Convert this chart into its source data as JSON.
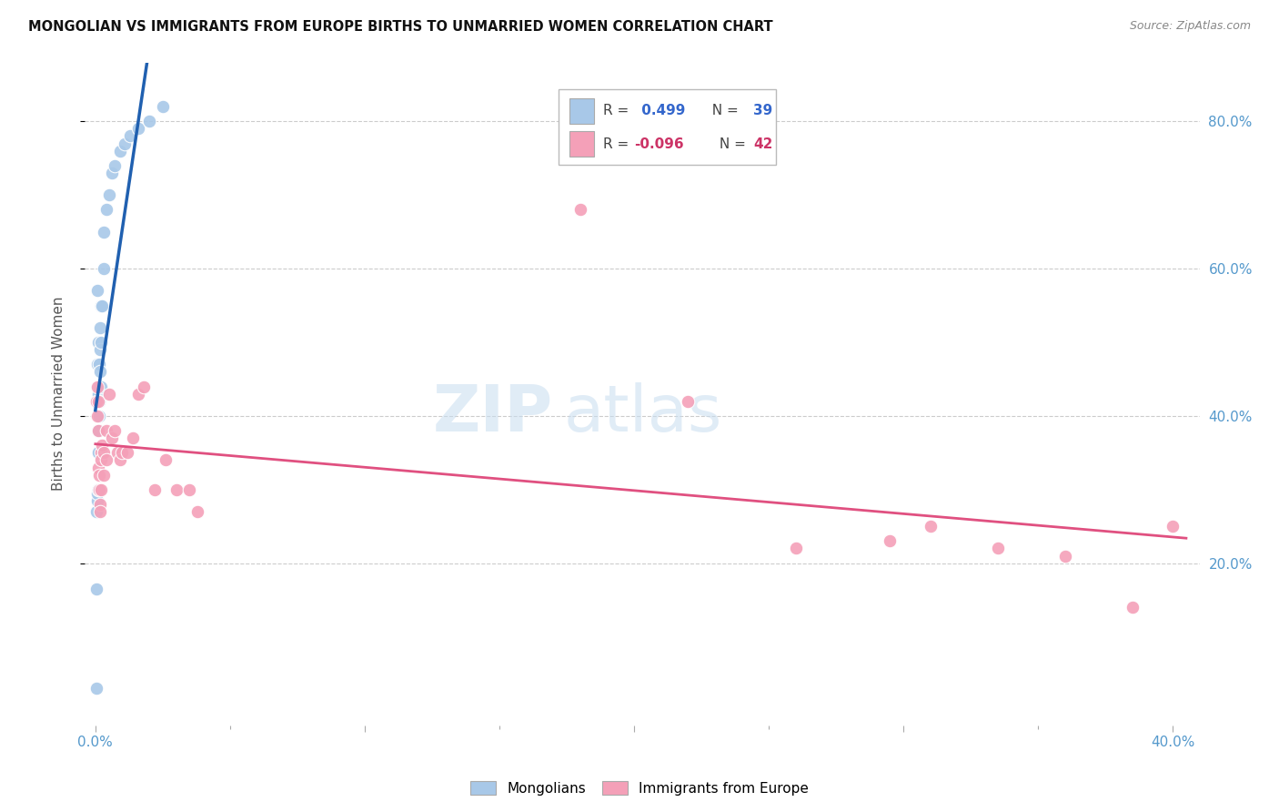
{
  "title": "MONGOLIAN VS IMMIGRANTS FROM EUROPE BIRTHS TO UNMARRIED WOMEN CORRELATION CHART",
  "source": "Source: ZipAtlas.com",
  "ylabel": "Births to Unmarried Women",
  "watermark_zip": "ZIP",
  "watermark_atlas": "atlas",
  "blue_color": "#a8c8e8",
  "pink_color": "#f4a0b8",
  "blue_line_color": "#2060b0",
  "pink_line_color": "#e05080",
  "blue_r": "0.499",
  "blue_n": "39",
  "pink_r": "-0.096",
  "pink_n": "42",
  "mongolian_x": [
    0.0004,
    0.0004,
    0.0005,
    0.0006,
    0.0006,
    0.0007,
    0.0008,
    0.0008,
    0.0009,
    0.001,
    0.001,
    0.001,
    0.001,
    0.0012,
    0.0012,
    0.0013,
    0.0013,
    0.0014,
    0.0015,
    0.0015,
    0.0016,
    0.0017,
    0.0018,
    0.002,
    0.002,
    0.0022,
    0.0025,
    0.003,
    0.003,
    0.004,
    0.005,
    0.006,
    0.007,
    0.009,
    0.011,
    0.013,
    0.016,
    0.02,
    0.025
  ],
  "mongolian_y": [
    0.03,
    0.165,
    0.27,
    0.285,
    0.57,
    0.295,
    0.44,
    0.47,
    0.5,
    0.3,
    0.35,
    0.38,
    0.43,
    0.35,
    0.38,
    0.4,
    0.44,
    0.42,
    0.44,
    0.47,
    0.46,
    0.49,
    0.52,
    0.44,
    0.5,
    0.55,
    0.55,
    0.6,
    0.65,
    0.68,
    0.7,
    0.73,
    0.74,
    0.76,
    0.77,
    0.78,
    0.79,
    0.8,
    0.82
  ],
  "europe_x": [
    0.0004,
    0.0006,
    0.0008,
    0.001,
    0.001,
    0.0012,
    0.0013,
    0.0015,
    0.0016,
    0.0018,
    0.002,
    0.002,
    0.0022,
    0.0025,
    0.003,
    0.003,
    0.004,
    0.004,
    0.005,
    0.006,
    0.007,
    0.008,
    0.009,
    0.01,
    0.012,
    0.014,
    0.016,
    0.018,
    0.022,
    0.026,
    0.03,
    0.035,
    0.038,
    0.18,
    0.22,
    0.26,
    0.295,
    0.31,
    0.335,
    0.36,
    0.385,
    0.4
  ],
  "europe_y": [
    0.42,
    0.44,
    0.4,
    0.38,
    0.42,
    0.33,
    0.32,
    0.3,
    0.28,
    0.27,
    0.3,
    0.35,
    0.34,
    0.36,
    0.32,
    0.35,
    0.34,
    0.38,
    0.43,
    0.37,
    0.38,
    0.35,
    0.34,
    0.35,
    0.35,
    0.37,
    0.43,
    0.44,
    0.3,
    0.34,
    0.3,
    0.3,
    0.27,
    0.68,
    0.42,
    0.22,
    0.23,
    0.25,
    0.22,
    0.21,
    0.14,
    0.25
  ],
  "xlim": [
    -0.004,
    0.41
  ],
  "ylim": [
    -0.02,
    0.88
  ],
  "yticks": [
    0.2,
    0.4,
    0.6,
    0.8
  ],
  "ytick_labels": [
    "20.0%",
    "40.0%",
    "60.0%",
    "80.0%"
  ]
}
